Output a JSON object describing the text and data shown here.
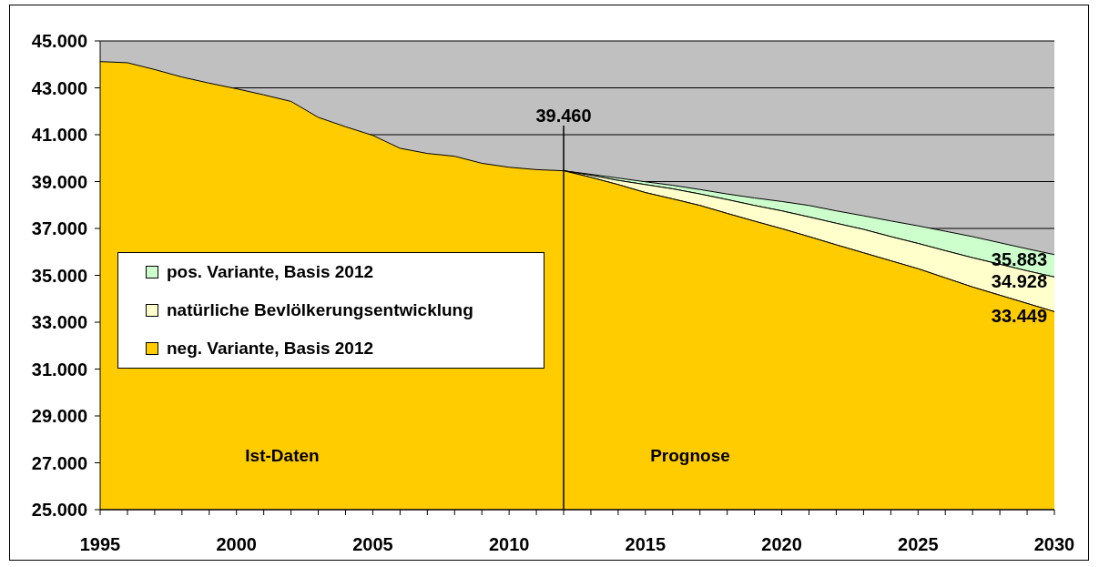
{
  "chart_data": {
    "type": "area",
    "x": [
      1995,
      1996,
      1997,
      1998,
      1999,
      2000,
      2001,
      2002,
      2003,
      2004,
      2005,
      2006,
      2007,
      2008,
      2009,
      2010,
      2011,
      2012,
      2013,
      2014,
      2015,
      2016,
      2017,
      2018,
      2019,
      2020,
      2021,
      2022,
      2023,
      2024,
      2025,
      2026,
      2027,
      2028,
      2029,
      2030
    ],
    "series": [
      {
        "name": "pos. Variante, Basis 2012",
        "color": "#ccffcc",
        "values": [
          null,
          null,
          null,
          null,
          null,
          null,
          null,
          null,
          null,
          null,
          null,
          null,
          null,
          null,
          null,
          null,
          null,
          39460,
          39310,
          39150,
          38990,
          38840,
          38660,
          38470,
          38300,
          38150,
          37980,
          37750,
          37540,
          37320,
          37110,
          36880,
          36650,
          36390,
          36130,
          35883
        ],
        "value_labels": [
          null,
          null,
          null,
          null,
          null,
          null,
          null,
          null,
          null,
          null,
          null,
          null,
          null,
          null,
          null,
          null,
          null,
          null,
          null,
          null,
          null,
          null,
          null,
          null,
          null,
          null,
          null,
          null,
          null,
          null,
          null,
          null,
          null,
          null,
          null,
          "35.883"
        ]
      },
      {
        "name": "natürliche Bevlölkerungsentwicklung",
        "color": "#ffffcc",
        "values": [
          null,
          null,
          null,
          null,
          null,
          null,
          null,
          null,
          null,
          null,
          null,
          null,
          null,
          null,
          null,
          null,
          null,
          39460,
          39270,
          39050,
          38870,
          38690,
          38470,
          38230,
          37980,
          37750,
          37490,
          37220,
          36960,
          36650,
          36360,
          36050,
          35750,
          35470,
          35190,
          34928
        ],
        "value_labels": [
          null,
          null,
          null,
          null,
          null,
          null,
          null,
          null,
          null,
          null,
          null,
          null,
          null,
          null,
          null,
          null,
          null,
          null,
          null,
          null,
          null,
          null,
          null,
          null,
          null,
          null,
          null,
          null,
          null,
          null,
          null,
          null,
          null,
          null,
          null,
          "34.928"
        ]
      },
      {
        "name": "neg. Variante, Basis 2012",
        "color": "#ffcc00",
        "values": [
          44120,
          44070,
          43780,
          43460,
          43200,
          42960,
          42700,
          42420,
          41740,
          41340,
          40970,
          40420,
          40200,
          40080,
          39780,
          39610,
          39510,
          39460,
          39180,
          38870,
          38530,
          38260,
          37980,
          37640,
          37310,
          36990,
          36650,
          36300,
          35960,
          35620,
          35280,
          34890,
          34500,
          34150,
          33800,
          33449
        ],
        "value_labels": [
          null,
          null,
          null,
          null,
          null,
          null,
          null,
          null,
          null,
          null,
          null,
          null,
          null,
          null,
          null,
          null,
          null,
          null,
          null,
          null,
          null,
          null,
          null,
          null,
          null,
          null,
          null,
          null,
          null,
          null,
          null,
          null,
          null,
          null,
          null,
          "33.449"
        ]
      }
    ],
    "xlim": [
      1995,
      2030
    ],
    "xticks": [
      1995,
      {
        "value": 1996,
        "label": null
      },
      {
        "value": 1997,
        "label": null
      },
      {
        "value": 1998,
        "label": null
      },
      {
        "value": 1999,
        "label": null
      },
      2000,
      {
        "value": 2001,
        "label": null
      },
      {
        "value": 2002,
        "label": null
      },
      {
        "value": 2003,
        "label": null
      },
      {
        "value": 2004,
        "label": null
      },
      2005,
      {
        "value": 2006,
        "label": null
      },
      {
        "value": 2007,
        "label": null
      },
      {
        "value": 2008,
        "label": null
      },
      {
        "value": 2009,
        "label": null
      },
      2010,
      {
        "value": 2011,
        "label": null
      },
      {
        "value": 2012,
        "label": null
      },
      {
        "value": 2013,
        "label": null
      },
      {
        "value": 2014,
        "label": null
      },
      2015,
      {
        "value": 2016,
        "label": null
      },
      {
        "value": 2017,
        "label": null
      },
      {
        "value": 2018,
        "label": null
      },
      {
        "value": 2019,
        "label": null
      },
      2020,
      {
        "value": 2021,
        "label": null
      },
      {
        "value": 2022,
        "label": null
      },
      {
        "value": 2023,
        "label": null
      },
      {
        "value": 2024,
        "label": null
      },
      2025,
      {
        "value": 2026,
        "label": null
      },
      {
        "value": 2027,
        "label": null
      },
      {
        "value": 2028,
        "label": null
      },
      {
        "value": 2029,
        "label": null
      },
      2030
    ],
    "ylim": [
      25000,
      45000
    ],
    "yticks": [
      {
        "value": 25000,
        "label": "25.000"
      },
      {
        "value": 27000,
        "label": "27.000"
      },
      {
        "value": 29000,
        "label": "29.000"
      },
      {
        "value": 31000,
        "label": "31.000"
      },
      {
        "value": 33000,
        "label": "33.000"
      },
      {
        "value": 35000,
        "label": "35.000"
      },
      {
        "value": 37000,
        "label": "37.000"
      },
      {
        "value": 39000,
        "label": "39.000"
      },
      {
        "value": 41000,
        "label": "41.000"
      },
      {
        "value": 43000,
        "label": "43.000"
      },
      {
        "value": 45000,
        "label": "45.000"
      }
    ],
    "grid": "y",
    "legend": "left",
    "ref_lines": [
      {
        "axis": "x",
        "value": 2012,
        "color": "#000000"
      }
    ],
    "annotations": [
      {
        "text": "39.460",
        "x": 2012,
        "y": 39460
      },
      "Ist-Daten",
      "Prognose"
    ]
  }
}
